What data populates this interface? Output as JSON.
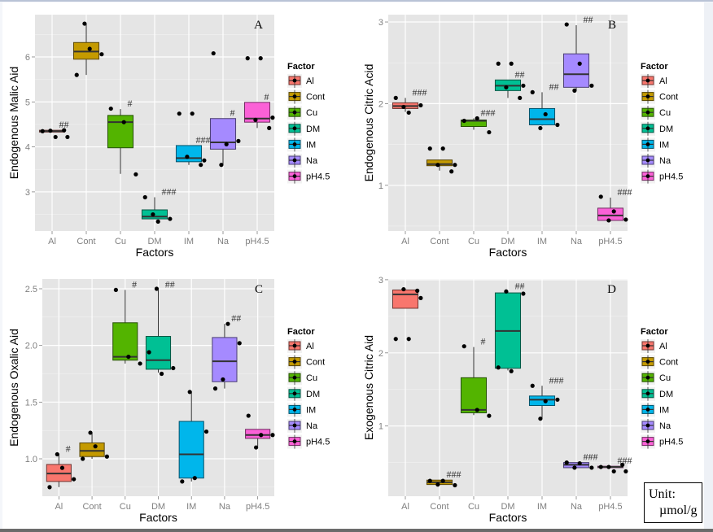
{
  "colors": {
    "Al": "#F8766D",
    "Cont": "#C49A00",
    "Cu": "#53B400",
    "DM": "#00C094",
    "IM": "#00B6EB",
    "Na": "#A58AFF",
    "pH4.5": "#FB61D7",
    "panel_bg": "#E5E5E5",
    "grid": "#FFFFFF"
  },
  "unit_box": {
    "line1": "Unit:",
    "line2": "µmol/g"
  },
  "chart_data": [
    {
      "id": "A",
      "type": "boxplot",
      "panel_label": "A",
      "xlabel": "Factors",
      "ylabel": "Endogenous Malic Aid",
      "categories": [
        "Al",
        "Cont",
        "Cu",
        "DM",
        "IM",
        "Na",
        "pH4.5"
      ],
      "yticks": [
        3,
        4,
        5,
        6
      ],
      "ylim": [
        2.13,
        6.94
      ],
      "grid": true,
      "legend": {
        "title": "Factor",
        "position": "right",
        "entries": [
          "Al",
          "Cont",
          "Cu",
          "DM",
          "IM",
          "Na",
          "pH4.5"
        ]
      },
      "boxes": [
        {
          "cat": "Al",
          "lower": 4.33,
          "q1": 4.33,
          "median": 4.35,
          "q3": 4.37,
          "upper": 4.37,
          "points": [
            4.35,
            4.22,
            4.22,
            4.36,
            4.37
          ],
          "sig": "##"
        },
        {
          "cat": "Cont",
          "lower": 5.6,
          "q1": 5.95,
          "median": 6.12,
          "q3": 6.32,
          "upper": 6.74,
          "points": [
            5.6,
            6.18,
            6.06,
            6.74
          ],
          "sig": ""
        },
        {
          "cat": "Cu",
          "lower": 3.4,
          "q1": 3.98,
          "median": 4.55,
          "q3": 4.7,
          "upper": 4.84,
          "points": [
            4.85,
            4.55,
            3.39
          ],
          "sig": "#"
        },
        {
          "cat": "DM",
          "lower": 2.4,
          "q1": 2.4,
          "median": 2.45,
          "q3": 2.6,
          "upper": 2.88,
          "points": [
            2.88,
            2.34,
            2.4,
            2.5
          ],
          "sig": "###"
        },
        {
          "cat": "IM",
          "lower": 3.6,
          "q1": 3.67,
          "median": 3.75,
          "q3": 4.03,
          "upper": 4.03,
          "points": [
            4.74,
            4.74,
            3.7,
            3.78,
            3.6
          ],
          "sig": "###"
        },
        {
          "cat": "Na",
          "lower": 3.6,
          "q1": 3.95,
          "median": 4.1,
          "q3": 4.63,
          "upper": 4.63,
          "points": [
            6.08,
            4.06,
            4.13,
            3.6
          ],
          "sig": "#"
        },
        {
          "cat": "pH4.5",
          "lower": 4.42,
          "q1": 4.55,
          "median": 4.63,
          "q3": 4.99,
          "upper": 4.99,
          "points": [
            5.97,
            5.97,
            4.65,
            4.6,
            4.42
          ],
          "sig": "#"
        }
      ]
    },
    {
      "id": "B",
      "type": "boxplot",
      "panel_label": "B",
      "xlabel": "Factors",
      "ylabel": "Endogenous Citric Acid",
      "categories": [
        "Al",
        "Cont",
        "Cu",
        "DM",
        "IM",
        "Na",
        "pH4.5"
      ],
      "yticks": [
        1,
        2,
        3
      ],
      "ylim": [
        0.44,
        3.09
      ],
      "grid": true,
      "legend": {
        "title": "Factor",
        "position": "right",
        "entries": [
          "Al",
          "Cont",
          "Cu",
          "DM",
          "IM",
          "Na",
          "pH4.5"
        ]
      },
      "boxes": [
        {
          "cat": "Al",
          "lower": 1.9,
          "q1": 1.94,
          "median": 1.97,
          "q3": 2.01,
          "upper": 2.07,
          "points": [
            2.07,
            1.89,
            1.98,
            1.96
          ],
          "sig": "###"
        },
        {
          "cat": "Cont",
          "lower": 1.18,
          "q1": 1.24,
          "median": 1.26,
          "q3": 1.31,
          "upper": 1.31,
          "points": [
            1.45,
            1.45,
            1.25,
            1.25,
            1.17
          ],
          "sig": ""
        },
        {
          "cat": "Cu",
          "lower": 1.68,
          "q1": 1.72,
          "median": 1.79,
          "q3": 1.8,
          "upper": 1.82,
          "points": [
            1.79,
            1.82,
            1.65
          ],
          "sig": "###"
        },
        {
          "cat": "DM",
          "lower": 2.07,
          "q1": 2.16,
          "median": 2.22,
          "q3": 2.29,
          "upper": 2.29,
          "points": [
            2.49,
            2.49,
            2.22,
            2.2,
            2.07
          ],
          "sig": "##"
        },
        {
          "cat": "IM",
          "lower": 1.73,
          "q1": 1.74,
          "median": 1.81,
          "q3": 1.94,
          "upper": 2.14,
          "points": [
            2.14,
            1.87,
            1.74,
            1.7
          ],
          "sig": "##"
        },
        {
          "cat": "Na",
          "lower": 2.16,
          "q1": 2.2,
          "median": 2.36,
          "q3": 2.61,
          "upper": 2.96,
          "points": [
            2.97,
            2.49,
            2.22,
            2.16
          ],
          "sig": "##"
        },
        {
          "cat": "pH4.5",
          "lower": 0.57,
          "q1": 0.57,
          "median": 0.63,
          "q3": 0.72,
          "upper": 0.85,
          "points": [
            0.86,
            0.68,
            0.58,
            0.57
          ],
          "sig": "###"
        }
      ]
    },
    {
      "id": "C",
      "type": "boxplot",
      "panel_label": "C",
      "xlabel": "Factors",
      "ylabel": "Endogenous Oxalic Aid",
      "categories": [
        "Al",
        "Cont",
        "Cu",
        "DM",
        "IM",
        "Na",
        "pH4.5"
      ],
      "yticks": [
        1.0,
        1.5,
        2.0,
        2.5
      ],
      "yticklabels": [
        "1.0",
        "1.5",
        "2.0",
        "2.5"
      ],
      "ylim": [
        0.67,
        2.586
      ],
      "grid": true,
      "legend": {
        "title": "Factor",
        "position": "right",
        "entries": [
          "Al",
          "Cont",
          "Cu",
          "DM",
          "IM",
          "Na",
          "pH4.5"
        ]
      },
      "boxes": [
        {
          "cat": "Al",
          "lower": 0.75,
          "q1": 0.8,
          "median": 0.87,
          "q3": 0.95,
          "upper": 1.04,
          "points": [
            0.75,
            0.92,
            0.82,
            1.04
          ],
          "sig": "#"
        },
        {
          "cat": "Cont",
          "lower": 1.0,
          "q1": 1.02,
          "median": 1.07,
          "q3": 1.14,
          "upper": 1.23,
          "points": [
            1.0,
            1.11,
            1.02,
            1.23
          ],
          "sig": ""
        },
        {
          "cat": "Cu",
          "lower": 1.84,
          "q1": 1.87,
          "median": 1.9,
          "q3": 2.2,
          "upper": 2.49,
          "points": [
            2.49,
            1.9,
            1.84
          ],
          "sig": "#"
        },
        {
          "cat": "DM",
          "lower": 1.76,
          "q1": 1.79,
          "median": 1.87,
          "q3": 2.08,
          "upper": 2.49,
          "points": [
            1.94,
            1.75,
            1.8,
            2.5
          ],
          "sig": "##"
        },
        {
          "cat": "IM",
          "lower": 0.8,
          "q1": 0.83,
          "median": 1.04,
          "q3": 1.33,
          "upper": 1.59,
          "points": [
            0.8,
            0.83,
            1.24,
            1.59
          ],
          "sig": ""
        },
        {
          "cat": "Na",
          "lower": 1.62,
          "q1": 1.68,
          "median": 1.86,
          "q3": 2.07,
          "upper": 2.19,
          "points": [
            1.62,
            2.19,
            2.02,
            1.7
          ],
          "sig": "##"
        },
        {
          "cat": "pH4.5",
          "lower": 1.11,
          "q1": 1.18,
          "median": 1.21,
          "q3": 1.26,
          "upper": 1.26,
          "points": [
            1.38,
            1.21,
            1.21,
            1.1
          ],
          "sig": ""
        }
      ]
    },
    {
      "id": "D",
      "type": "boxplot",
      "panel_label": "D",
      "xlabel": "Factors",
      "ylabel": "Exogenous Citric Aid",
      "categories": [
        "Al",
        "Cont",
        "Cu",
        "DM",
        "IM",
        "Na",
        "pH4.5"
      ],
      "yticks": [
        1,
        2,
        3
      ],
      "ylim": [
        0.04,
        3.01
      ],
      "grid": true,
      "legend": {
        "title": "Factor",
        "position": "right",
        "entries": [
          "Al",
          "Cont",
          "Cu",
          "DM",
          "IM",
          "Na",
          "pH4.5"
        ]
      },
      "boxes": [
        {
          "cat": "Al",
          "lower": 2.61,
          "q1": 2.61,
          "median": 2.8,
          "q3": 2.86,
          "upper": 2.86,
          "points": [
            2.19,
            2.19,
            2.75,
            2.87,
            2.85
          ],
          "sig": ""
        },
        {
          "cat": "Cont",
          "lower": 0.2,
          "q1": 0.2,
          "median": 0.23,
          "q3": 0.26,
          "upper": 0.26,
          "points": [
            0.25,
            0.25,
            0.19,
            0.2
          ],
          "sig": "###"
        },
        {
          "cat": "Cu",
          "lower": 1.15,
          "q1": 1.18,
          "median": 1.22,
          "q3": 1.66,
          "upper": 2.08,
          "points": [
            2.09,
            1.22,
            1.14
          ],
          "sig": "#"
        },
        {
          "cat": "DM",
          "lower": 1.76,
          "q1": 1.79,
          "median": 2.3,
          "q3": 2.82,
          "upper": 2.84,
          "points": [
            1.8,
            1.75,
            2.81,
            2.84
          ],
          "sig": "##"
        },
        {
          "cat": "IM",
          "lower": 1.1,
          "q1": 1.28,
          "median": 1.36,
          "q3": 1.41,
          "upper": 1.55,
          "points": [
            1.55,
            1.34,
            1.36,
            1.1
          ],
          "sig": "###"
        },
        {
          "cat": "Na",
          "lower": 0.43,
          "q1": 0.43,
          "median": 0.47,
          "q3": 0.5,
          "upper": 0.5,
          "points": [
            0.5,
            0.49,
            0.43,
            0.43
          ],
          "sig": "###"
        },
        {
          "cat": "pH4.5",
          "lower": 0.43,
          "q1": 0.43,
          "median": 0.44,
          "q3": 0.45,
          "upper": 0.45,
          "points": [
            0.44,
            0.38,
            0.38,
            0.44,
            0.47
          ],
          "sig": "###"
        }
      ]
    }
  ]
}
